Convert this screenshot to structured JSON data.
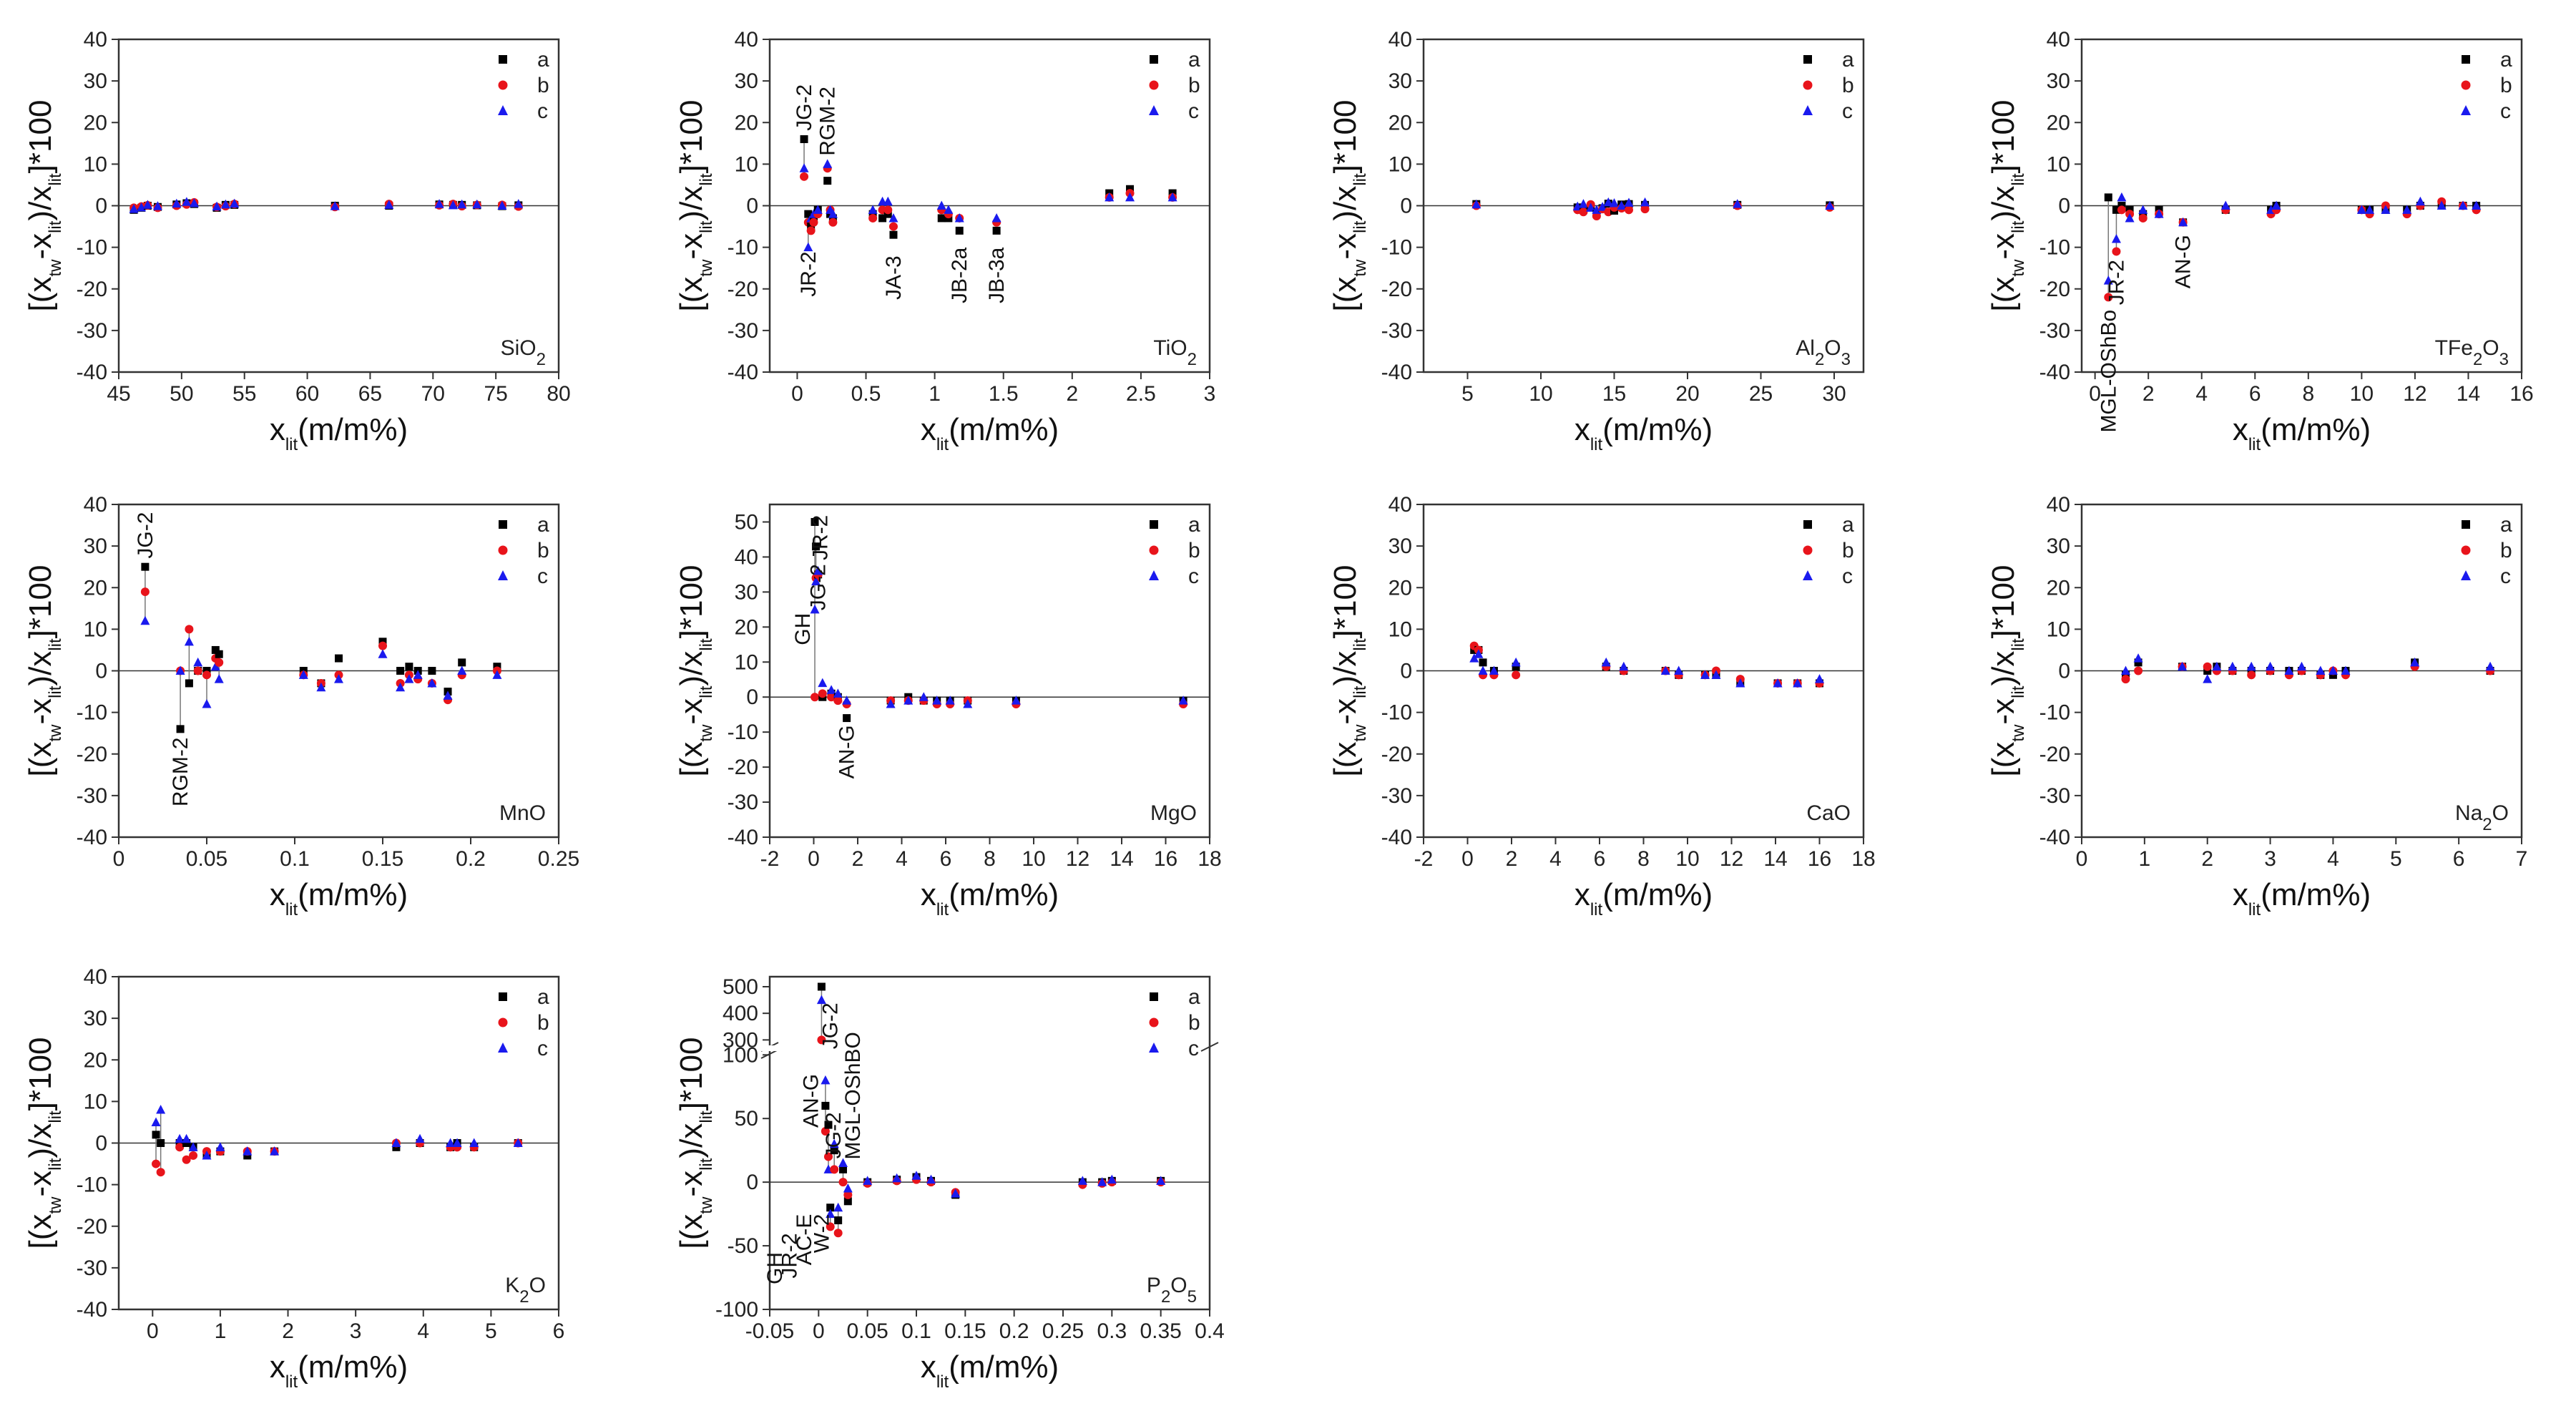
{
  "figure": {
    "legend_labels": [
      "a",
      "b",
      "c"
    ],
    "colors": {
      "a": "#000000",
      "b": "#e8141b",
      "c": "#1a1aee",
      "axis": "#333333",
      "connector": "#777777"
    },
    "xlabel": {
      "base": "x",
      "sub": "lit",
      "rest": "(m/m%)"
    },
    "ylabel": {
      "p1": "[(x",
      "s1": "tw",
      "p2": "-x",
      "s2": "lit",
      "p3": ")/x",
      "s3": "lit",
      "p4": "]*100"
    }
  },
  "chart_data": [
    {
      "type": "scatter",
      "oxide": {
        "main": "SiO",
        "sub": "2",
        "tail": ""
      },
      "xlim": [
        45,
        80
      ],
      "xticks": [
        45,
        50,
        55,
        60,
        65,
        70,
        75,
        80
      ],
      "ylim": [
        -40,
        40
      ],
      "yticks": [
        -40,
        -30,
        -20,
        -10,
        0,
        10,
        20,
        30,
        40
      ],
      "x": [
        46.2,
        46.8,
        47.3,
        48.1,
        49.6,
        50.4,
        51.0,
        52.8,
        53.5,
        54.2,
        62.2,
        66.5,
        70.5,
        71.6,
        72.3,
        73.5,
        75.5,
        76.8
      ],
      "ya": [
        -1.0,
        -0.5,
        0.0,
        -0.3,
        0.3,
        0.6,
        0.4,
        -0.5,
        0.2,
        0.2,
        0.0,
        0.0,
        0.3,
        0.2,
        0.2,
        0.1,
        -0.1,
        0.1
      ],
      "yb": [
        -0.5,
        -0.2,
        0.1,
        -0.5,
        0.0,
        0.3,
        0.8,
        -0.3,
        -0.1,
        0.4,
        -0.3,
        0.4,
        0.1,
        0.4,
        -0.1,
        0.2,
        0.2,
        -0.2
      ],
      "yc": [
        -0.8,
        -0.4,
        0.2,
        -0.1,
        0.5,
        0.9,
        0.6,
        -0.2,
        0.3,
        0.5,
        -0.1,
        0.2,
        0.4,
        0.1,
        0.3,
        0.3,
        0.0,
        0.4
      ],
      "annotations": []
    },
    {
      "type": "scatter",
      "oxide": {
        "main": "TiO",
        "sub": "2",
        "tail": ""
      },
      "xlim": [
        -0.2,
        3.0
      ],
      "xticks": [
        0.0,
        0.5,
        1.0,
        1.5,
        2.0,
        2.5,
        3.0
      ],
      "ylim": [
        -40,
        40
      ],
      "yticks": [
        -40,
        -30,
        -20,
        -10,
        0,
        10,
        20,
        30,
        40
      ],
      "x": [
        0.05,
        0.08,
        0.1,
        0.12,
        0.15,
        0.22,
        0.24,
        0.26,
        0.55,
        0.62,
        0.66,
        0.7,
        1.05,
        1.1,
        1.18,
        1.45,
        2.27,
        2.42,
        2.73
      ],
      "ya": [
        16,
        -2,
        -5,
        -3,
        -1,
        6,
        -2,
        -3,
        -2,
        -3,
        -2,
        -7,
        -3,
        -3,
        -6,
        -6,
        3,
        4,
        3
      ],
      "yb": [
        7,
        -4,
        -6,
        -4,
        -2,
        9,
        -1,
        -4,
        -3,
        -1,
        -1,
        -5,
        -1,
        -2,
        -3,
        -4,
        2,
        3,
        2
      ],
      "yc": [
        9,
        -10,
        -3,
        -2,
        -1,
        10,
        -1,
        -2,
        -1,
        1,
        1,
        -3,
        0,
        -1,
        -3,
        -3,
        2,
        2,
        2
      ],
      "annotations": [
        {
          "text": "JG-2",
          "x": 0.05,
          "y": 18,
          "dir": "up"
        },
        {
          "text": "RGM-2",
          "x": 0.22,
          "y": 12,
          "dir": "up"
        },
        {
          "text": "JR-2",
          "x": 0.08,
          "y": -11,
          "dir": "down"
        },
        {
          "text": "JA-3",
          "x": 0.7,
          "y": -12,
          "dir": "down"
        },
        {
          "text": "JB-2a",
          "x": 1.18,
          "y": -10,
          "dir": "down"
        },
        {
          "text": "JB-3a",
          "x": 1.45,
          "y": -10,
          "dir": "down"
        }
      ]
    },
    {
      "type": "scatter",
      "oxide": {
        "main": "Al",
        "sub": "2",
        "tail": "O3"
      },
      "xlim": [
        2,
        32
      ],
      "xticks": [
        5,
        10,
        15,
        20,
        25,
        30
      ],
      "ylim": [
        -40,
        40
      ],
      "yticks": [
        -40,
        -30,
        -20,
        -10,
        0,
        10,
        20,
        30,
        40
      ],
      "x": [
        5.6,
        12.5,
        12.9,
        13.4,
        13.8,
        14.2,
        14.6,
        15.0,
        15.5,
        16.0,
        17.1,
        23.4,
        29.7
      ],
      "ya": [
        0.4,
        -0.4,
        -1.0,
        -0.3,
        -2.0,
        -0.6,
        0.5,
        -1.2,
        0.3,
        0.4,
        0.2,
        0.2,
        0.1
      ],
      "yb": [
        0.0,
        -1.0,
        -1.5,
        0.3,
        -2.5,
        -0.8,
        -1.5,
        -0.4,
        -0.6,
        -1.0,
        -0.8,
        0.0,
        -0.4
      ],
      "yc": [
        0.3,
        -0.2,
        0.4,
        -0.5,
        -1.0,
        -0.3,
        0.8,
        0.6,
        0.0,
        0.7,
        0.8,
        0.4,
        0.0
      ],
      "annotations": []
    },
    {
      "type": "scatter",
      "oxide": {
        "main": "TFe",
        "sub": "2",
        "tail": "O3"
      },
      "xlim": [
        -0.5,
        16
      ],
      "xticks": [
        0,
        2,
        4,
        6,
        8,
        10,
        12,
        14,
        16
      ],
      "ylim": [
        -40,
        40
      ],
      "yticks": [
        -40,
        -30,
        -20,
        -10,
        0,
        10,
        20,
        30,
        40
      ],
      "x": [
        0.5,
        0.8,
        1.0,
        1.3,
        1.8,
        2.4,
        3.3,
        4.9,
        6.6,
        6.8,
        10.0,
        10.3,
        10.9,
        11.7,
        12.2,
        13.0,
        13.8,
        14.3
      ],
      "ya": [
        2,
        -1,
        0,
        -1,
        -2,
        -1,
        -4,
        -1,
        -1,
        0,
        -1,
        -1,
        -1,
        -1,
        0,
        0,
        0,
        0
      ],
      "yb": [
        -22,
        -11,
        -1,
        -2,
        -3,
        -2,
        -4,
        -1,
        -2,
        -1,
        -1,
        -2,
        0,
        -2,
        0,
        1,
        0,
        -1
      ],
      "yc": [
        -18,
        -8,
        2,
        -3,
        -1,
        -2,
        -4,
        0,
        -1,
        0,
        -1,
        -1,
        -1,
        -1,
        1,
        0,
        0,
        0
      ],
      "annotations": [
        {
          "text": "MGL-OShBo",
          "x": 0.5,
          "y": -25,
          "dir": "down"
        },
        {
          "text": "JR-2",
          "x": 0.8,
          "y": -13,
          "dir": "down"
        },
        {
          "text": "AN-G",
          "x": 3.3,
          "y": -7,
          "dir": "down"
        }
      ]
    },
    {
      "type": "scatter",
      "oxide": {
        "main": "MnO",
        "sub": "",
        "tail": ""
      },
      "xlim": [
        0.0,
        0.25
      ],
      "xticks": [
        0.0,
        0.05,
        0.1,
        0.15,
        0.2,
        0.25
      ],
      "ylim": [
        -40,
        40
      ],
      "yticks": [
        -40,
        -30,
        -20,
        -10,
        0,
        10,
        20,
        30,
        40
      ],
      "x": [
        0.015,
        0.035,
        0.04,
        0.045,
        0.05,
        0.055,
        0.057,
        0.105,
        0.115,
        0.125,
        0.15,
        0.16,
        0.165,
        0.17,
        0.178,
        0.187,
        0.195,
        0.215
      ],
      "ya": [
        25,
        -14,
        -3,
        0,
        0,
        5,
        4,
        0,
        -3,
        3,
        7,
        0,
        1,
        0,
        0,
        -5,
        2,
        1
      ],
      "yb": [
        19,
        0,
        10,
        0,
        -1,
        3,
        2,
        -1,
        -3,
        -1,
        6,
        -3,
        -1,
        -2,
        -3,
        -7,
        -1,
        0
      ],
      "yc": [
        12,
        0,
        7,
        2,
        -8,
        1,
        -2,
        -1,
        -4,
        -2,
        4,
        -4,
        -2,
        -1,
        -3,
        -6,
        0,
        -1
      ],
      "annotations": [
        {
          "text": "JG-2",
          "x": 0.015,
          "y": 27,
          "dir": "up"
        },
        {
          "text": "RGM-2",
          "x": 0.035,
          "y": -16,
          "dir": "down"
        }
      ]
    },
    {
      "type": "scatter",
      "oxide": {
        "main": "MgO",
        "sub": "",
        "tail": ""
      },
      "xlim": [
        -2,
        18
      ],
      "xticks": [
        -2,
        0,
        2,
        4,
        6,
        8,
        10,
        12,
        14,
        16,
        18
      ],
      "ylim": [
        -40,
        55
      ],
      "yticks": [
        -40,
        -30,
        -20,
        -10,
        0,
        10,
        20,
        30,
        40,
        50
      ],
      "x": [
        0.05,
        0.1,
        0.2,
        0.4,
        0.8,
        1.1,
        1.5,
        3.5,
        4.3,
        5.0,
        5.6,
        6.2,
        7.0,
        9.2,
        16.8
      ],
      "ya": [
        50,
        43,
        35,
        0,
        1,
        0,
        -6,
        -1,
        0,
        -1,
        -1,
        -1,
        -1,
        -1,
        -1
      ],
      "yb": [
        0,
        34,
        35,
        1,
        0,
        -1,
        -2,
        -1,
        -1,
        -1,
        -2,
        -2,
        -1,
        -2,
        -2
      ],
      "yc": [
        25,
        33,
        36,
        4,
        2,
        1,
        -1,
        -2,
        -1,
        0,
        -1,
        -1,
        -2,
        -1,
        -1
      ],
      "annotations": [
        {
          "text": "JR-2",
          "x": 0.3,
          "y": 52,
          "dir": "down-right"
        },
        {
          "text": "JG-2",
          "x": 0.2,
          "y": 38,
          "dir": "down-right"
        },
        {
          "text": "GH",
          "x": -0.5,
          "y": 24,
          "dir": "down"
        },
        {
          "text": "AN-G",
          "x": 1.5,
          "y": -8,
          "dir": "down"
        }
      ]
    },
    {
      "type": "scatter",
      "oxide": {
        "main": "CaO",
        "sub": "",
        "tail": ""
      },
      "xlim": [
        -2,
        18
      ],
      "xticks": [
        -2,
        0,
        2,
        4,
        6,
        8,
        10,
        12,
        14,
        16,
        18
      ],
      "ylim": [
        -40,
        40
      ],
      "yticks": [
        -40,
        -30,
        -20,
        -10,
        0,
        10,
        20,
        30,
        40
      ],
      "x": [
        0.3,
        0.5,
        0.7,
        1.2,
        2.2,
        6.3,
        7.1,
        9.0,
        9.6,
        10.8,
        11.3,
        12.4,
        14.1,
        15.0,
        16.0
      ],
      "ya": [
        5,
        5,
        2,
        0,
        1,
        1,
        0,
        0,
        -1,
        -1,
        -1,
        -3,
        -3,
        -3,
        -3
      ],
      "yb": [
        6,
        5,
        -1,
        -1,
        -1,
        1,
        0,
        0,
        -1,
        -1,
        0,
        -2,
        -3,
        -3,
        -3
      ],
      "yc": [
        3,
        4,
        0,
        0,
        2,
        2,
        1,
        0,
        0,
        -1,
        -1,
        -3,
        -3,
        -3,
        -2
      ],
      "annotations": []
    },
    {
      "type": "scatter",
      "oxide": {
        "main": "Na",
        "sub": "2",
        "tail": "O"
      },
      "xlim": [
        0,
        7
      ],
      "xticks": [
        0,
        1,
        2,
        3,
        4,
        5,
        6,
        7
      ],
      "ylim": [
        -40,
        40
      ],
      "yticks": [
        -40,
        -30,
        -20,
        -10,
        0,
        10,
        20,
        30,
        40
      ],
      "x": [
        0.7,
        0.9,
        1.6,
        2.0,
        2.15,
        2.4,
        2.7,
        3.0,
        3.3,
        3.5,
        3.8,
        4.0,
        4.2,
        5.3,
        6.5
      ],
      "ya": [
        -1,
        2,
        1,
        0,
        1,
        0,
        0,
        0,
        0,
        0,
        -1,
        -1,
        0,
        2,
        0
      ],
      "yb": [
        -2,
        0,
        1,
        1,
        0,
        0,
        -1,
        0,
        -1,
        0,
        -1,
        0,
        -1,
        1,
        0
      ],
      "yc": [
        0,
        3,
        1,
        -2,
        1,
        1,
        1,
        1,
        0,
        1,
        0,
        0,
        0,
        2,
        1
      ],
      "annotations": []
    },
    {
      "type": "scatter",
      "oxide": {
        "main": "K",
        "sub": "2",
        "tail": "O"
      },
      "xlim": [
        -0.5,
        6
      ],
      "xticks": [
        0,
        1,
        2,
        3,
        4,
        5,
        6
      ],
      "ylim": [
        -40,
        40
      ],
      "yticks": [
        -40,
        -30,
        -20,
        -10,
        0,
        10,
        20,
        30,
        40
      ],
      "x": [
        0.05,
        0.12,
        0.4,
        0.5,
        0.6,
        0.8,
        1.0,
        1.4,
        1.8,
        3.6,
        3.95,
        4.4,
        4.5,
        4.75,
        5.4
      ],
      "ya": [
        2,
        0,
        0,
        0,
        -1,
        -3,
        -2,
        -3,
        -2,
        -1,
        0,
        -1,
        0,
        -1,
        0
      ],
      "yb": [
        -5,
        -7,
        -1,
        -4,
        -3,
        -2,
        -2,
        -2,
        -2,
        0,
        0,
        -1,
        -1,
        -1,
        0
      ],
      "yc": [
        5,
        8,
        1,
        1,
        -1,
        -3,
        -1,
        -2,
        -2,
        0,
        1,
        0,
        0,
        0,
        0
      ],
      "annotations": []
    },
    {
      "type": "scatter",
      "oxide": {
        "main": "P",
        "sub": "2",
        "tail": "O5"
      },
      "xlim": [
        -0.05,
        0.4
      ],
      "xticks": [
        -0.05,
        0.0,
        0.05,
        0.1,
        0.15,
        0.2,
        0.25,
        0.3,
        0.35,
        0.4
      ],
      "ylim": [
        -100,
        500
      ],
      "yticks_lower": [
        -100,
        -50,
        0,
        50,
        100
      ],
      "yticks_upper": [
        300,
        400,
        500
      ],
      "x": [
        0.003,
        0.007,
        0.01,
        0.012,
        0.016,
        0.02,
        0.025,
        0.03,
        0.05,
        0.08,
        0.1,
        0.115,
        0.14,
        0.27,
        0.29,
        0.3,
        0.35
      ],
      "ya": [
        500,
        60,
        45,
        -20,
        25,
        -30,
        10,
        -15,
        0,
        2,
        4,
        1,
        -10,
        0,
        0,
        1,
        1
      ],
      "yb": [
        300,
        40,
        20,
        -35,
        10,
        -40,
        0,
        -10,
        -1,
        1,
        2,
        0,
        -8,
        -2,
        -1,
        0,
        0
      ],
      "yc": [
        450,
        80,
        10,
        -25,
        30,
        -20,
        15,
        -5,
        1,
        3,
        5,
        2,
        -9,
        1,
        0,
        2,
        1
      ],
      "annotations": [
        {
          "text": "JG-2",
          "x": 0.012,
          "y": 440,
          "dir": "down"
        },
        {
          "text": "MGL-OShBO",
          "x": 0.035,
          "y": 330,
          "dir": "down"
        },
        {
          "text": "AN-G",
          "x": -0.008,
          "y": 85,
          "dir": "down"
        },
        {
          "text": "JG-2",
          "x": 0.015,
          "y": 55,
          "dir": "down"
        },
        {
          "text": "GH",
          "x": -0.045,
          "y": -55,
          "dir": "down"
        },
        {
          "text": "JR-2",
          "x": -0.03,
          "y": -40,
          "dir": "down"
        },
        {
          "text": "AC-E",
          "x": -0.015,
          "y": -25,
          "dir": "down"
        },
        {
          "text": "W-2",
          "x": 0.003,
          "y": -25,
          "dir": "down"
        }
      ]
    }
  ]
}
